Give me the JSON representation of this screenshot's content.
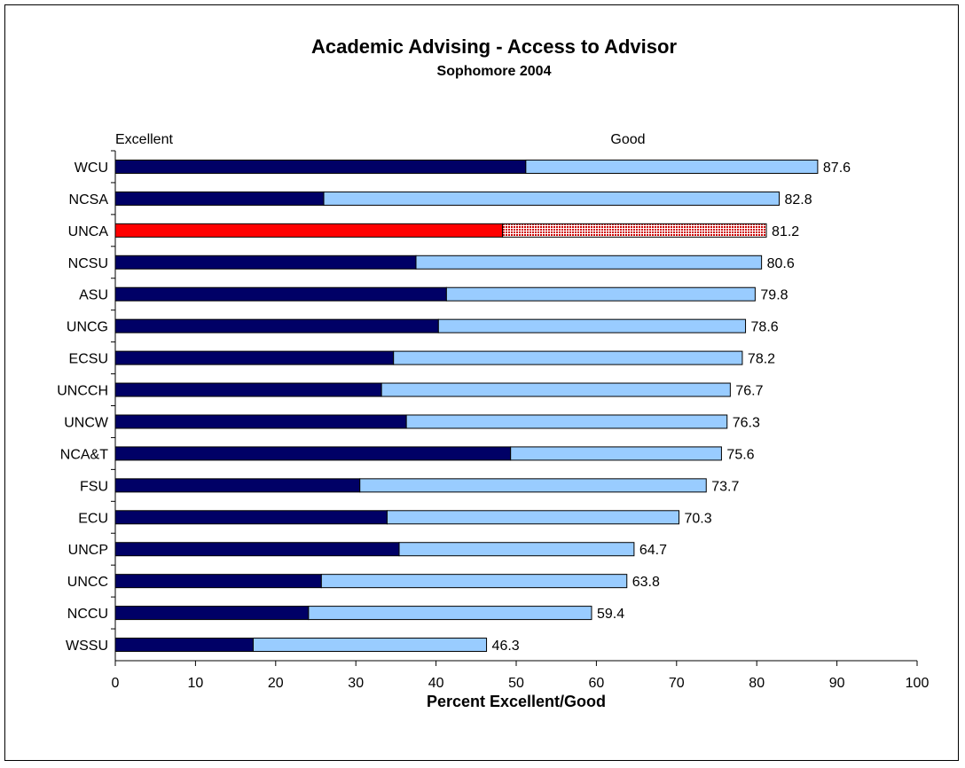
{
  "chart_data": {
    "type": "bar",
    "orientation": "horizontal",
    "stacked": true,
    "title": "Academic Advising - Access to Advisor",
    "subtitle": "Sophomore 2004",
    "xlabel": "Percent Excellent/Good",
    "ylabel": "",
    "xlim": [
      0,
      100
    ],
    "xticks": [
      0,
      10,
      20,
      30,
      40,
      50,
      60,
      70,
      80,
      90,
      100
    ],
    "grid": false,
    "legend_labels": [
      "Excellent",
      "Good"
    ],
    "highlight": "UNCA",
    "colors": {
      "excellent": "#000066",
      "good": "#99ccff",
      "highlight_excellent": "#ff0000",
      "highlight_good_pattern": "#ffffff",
      "highlight_good_dots": "#cc0000"
    },
    "categories": [
      "WCU",
      "NCSA",
      "UNCA",
      "NCSU",
      "ASU",
      "UNCG",
      "ECSU",
      "UNCCH",
      "UNCW",
      "NCA&T",
      "FSU",
      "ECU",
      "UNCP",
      "UNCC",
      "NCCU",
      "WSSU"
    ],
    "series": [
      {
        "name": "Excellent",
        "values": [
          51.2,
          26.0,
          48.3,
          37.5,
          41.3,
          40.3,
          34.7,
          33.2,
          36.3,
          49.3,
          30.5,
          33.9,
          35.4,
          25.7,
          24.1,
          17.2
        ]
      },
      {
        "name": "Good",
        "values": [
          36.4,
          56.8,
          32.9,
          43.1,
          38.5,
          38.3,
          43.5,
          43.5,
          40.0,
          26.3,
          43.2,
          36.4,
          29.3,
          38.1,
          35.3,
          29.1
        ]
      }
    ],
    "totals": [
      "87.6",
      "82.8",
      "81.2",
      "80.6",
      "79.8",
      "78.6",
      "78.2",
      "76.7",
      "76.3",
      "75.6",
      "73.7",
      "70.3",
      "64.7",
      "63.8",
      "59.4",
      "46.3"
    ]
  }
}
